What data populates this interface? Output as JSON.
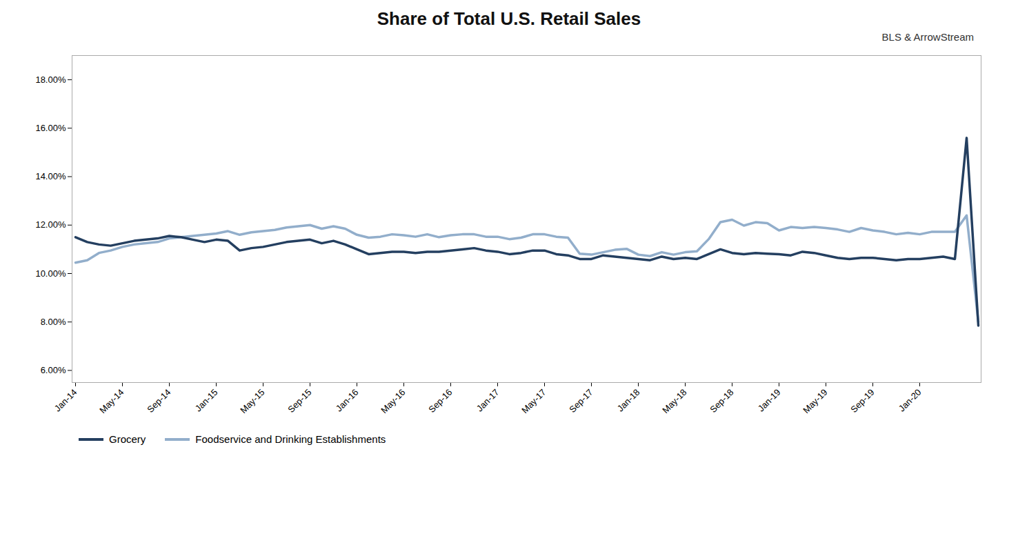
{
  "chart_data": {
    "type": "line",
    "title": "Share of Total  U.S. Retail Sales",
    "subtitle": "BLS & ArrowStream",
    "categories": [
      "Jan-14",
      null,
      null,
      null,
      "May-14",
      null,
      null,
      null,
      "Sep-14",
      null,
      null,
      null,
      "Jan-15",
      null,
      null,
      null,
      "May-15",
      null,
      null,
      null,
      "Sep-15",
      null,
      null,
      null,
      "Jan-16",
      null,
      null,
      null,
      "May-16",
      null,
      null,
      null,
      "Sep-16",
      null,
      null,
      null,
      "Jan-17",
      null,
      null,
      null,
      "May-17",
      null,
      null,
      null,
      "Sep-17",
      null,
      null,
      null,
      "Jan-18",
      null,
      null,
      null,
      "May-18",
      null,
      null,
      null,
      "Sep-18",
      null,
      null,
      null,
      "Jan-19",
      null,
      null,
      null,
      "May-19",
      null,
      null,
      null,
      "Sep-19",
      null,
      null,
      null,
      "Jan-20",
      null,
      null,
      null,
      null,
      null
    ],
    "series": [
      {
        "name": "Grocery",
        "color": "#243F60",
        "values": [
          0.115,
          0.113,
          0.112,
          0.1115,
          0.1125,
          0.1135,
          0.114,
          0.1145,
          0.1155,
          0.115,
          0.114,
          0.113,
          0.114,
          0.1135,
          0.1095,
          0.1105,
          0.111,
          0.112,
          0.113,
          0.1135,
          0.114,
          0.1125,
          0.1135,
          0.112,
          0.11,
          0.108,
          0.1085,
          0.109,
          0.109,
          0.1085,
          0.109,
          0.109,
          0.1095,
          0.11,
          0.1105,
          0.1095,
          0.109,
          0.108,
          0.1085,
          0.1095,
          0.1095,
          0.108,
          0.1075,
          0.106,
          0.106,
          0.1075,
          0.107,
          0.1065,
          0.106,
          0.1055,
          0.107,
          0.106,
          0.1065,
          0.106,
          0.108,
          0.11,
          0.1085,
          0.108,
          0.1085,
          0.1082,
          0.108,
          0.1075,
          0.109,
          0.1085,
          0.1075,
          0.1065,
          0.106,
          0.1065,
          0.1065,
          0.106,
          0.1055,
          0.106,
          0.106,
          0.1065,
          0.107,
          0.106,
          0.156,
          0.0785
        ]
      },
      {
        "name": "Foodservice and Drinking Establishments",
        "color": "#92AECB",
        "values": [
          0.1045,
          0.1055,
          0.1085,
          0.1095,
          0.111,
          0.112,
          0.1125,
          0.113,
          0.1145,
          0.115,
          0.1155,
          0.116,
          0.1165,
          0.1175,
          0.116,
          0.117,
          0.1175,
          0.118,
          0.119,
          0.1195,
          0.12,
          0.1185,
          0.1195,
          0.1185,
          0.116,
          0.1148,
          0.1152,
          0.1162,
          0.1158,
          0.1152,
          0.1162,
          0.115,
          0.1158,
          0.1162,
          0.1162,
          0.1152,
          0.1152,
          0.1142,
          0.1148,
          0.1162,
          0.1162,
          0.1152,
          0.1148,
          0.1082,
          0.1078,
          0.1088,
          0.1098,
          0.1102,
          0.1078,
          0.1072,
          0.1088,
          0.1078,
          0.1088,
          0.1092,
          0.1142,
          0.1212,
          0.1222,
          0.1198,
          0.1212,
          0.1208,
          0.1178,
          0.1192,
          0.1188,
          0.1192,
          0.1188,
          0.1182,
          0.1172,
          0.1188,
          0.1178,
          0.1172,
          0.1162,
          0.1168,
          0.1162,
          0.1172,
          0.1172,
          0.1172,
          0.124,
          0.08
        ]
      }
    ],
    "ylim": [
      0.055,
      0.19
    ],
    "yticks": [
      {
        "value": 0.06,
        "label": "6.00%"
      },
      {
        "value": 0.08,
        "label": "8.00%"
      },
      {
        "value": 0.1,
        "label": "10.00%"
      },
      {
        "value": 0.12,
        "label": "12.00%"
      },
      {
        "value": 0.14,
        "label": "14.00%"
      },
      {
        "value": 0.16,
        "label": "16.00%"
      },
      {
        "value": 0.18,
        "label": "18.00%"
      }
    ],
    "grid": false,
    "legend": "bottom"
  }
}
